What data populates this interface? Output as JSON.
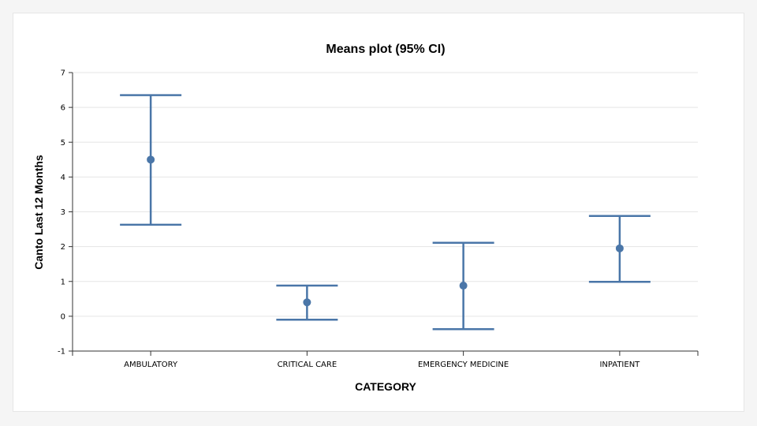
{
  "chart_data": {
    "type": "error-bar",
    "title": "Means plot (95% CI)",
    "xlabel": "CATEGORY",
    "ylabel": "Canto Last 12 Months",
    "ylim": [
      -1,
      7
    ],
    "yticks": [
      "-1",
      "0",
      "1",
      "2",
      "3",
      "4",
      "5",
      "6",
      "7"
    ],
    "grid": true,
    "categories": [
      "AMBULATORY",
      "CRITICAL CARE",
      "EMERGENCY MEDICINE",
      "INPATIENT"
    ],
    "means": [
      4.5,
      0.4,
      0.88,
      1.95
    ],
    "ci_lower": [
      2.63,
      -0.1,
      -0.37,
      0.99
    ],
    "ci_upper": [
      6.35,
      0.88,
      2.11,
      2.88
    ],
    "colors": {
      "series": "#4a76a8",
      "grid": "#e5e5e5",
      "axis": "#333333"
    }
  }
}
